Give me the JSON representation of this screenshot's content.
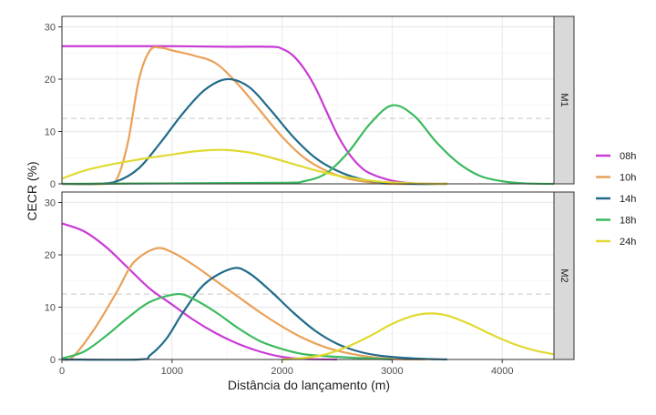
{
  "chart_data": {
    "type": "line",
    "xlabel": "Distância do lançamento (m)",
    "ylabel": "CECR (%)",
    "xlim": [
      0,
      4470
    ],
    "ylim": [
      0,
      32
    ],
    "xticks": [
      0,
      1000,
      2000,
      3000,
      4000
    ],
    "yticks": [
      0,
      10,
      20,
      30
    ],
    "grid": true,
    "threshold": 12.5,
    "legend": {
      "placement": "right",
      "entries": [
        "08h",
        "10h",
        "14h",
        "18h",
        "24h"
      ]
    },
    "colors": {
      "08h": "#c93ad4",
      "10h": "#e9a158",
      "14h": "#226b8a",
      "18h": "#3cba5f",
      "24h": "#e1d930"
    },
    "panels": [
      {
        "label": "M1",
        "series": [
          {
            "name": "08h",
            "x": [
              0,
              500,
              1000,
              1500,
              1900,
              2000,
              2100,
              2200,
              2300,
              2400,
              2500,
              2600,
              2700,
              2800,
              3000,
              3200,
              3500
            ],
            "y": [
              26.3,
              26.3,
              26.3,
              26.2,
              26.2,
              25.8,
              24.5,
              22,
              18.5,
              14,
              9.5,
              6,
              3.5,
              2,
              0.6,
              0.1,
              0
            ]
          },
          {
            "name": "10h",
            "x": [
              0,
              400,
              500,
              600,
              700,
              800,
              900,
              1000,
              1200,
              1400,
              1600,
              1800,
              2000,
              2200,
              2400,
              2600,
              2800,
              3000,
              3500
            ],
            "y": [
              0,
              0,
              1,
              8,
              20,
              25.5,
              26,
              25.5,
              24.5,
              23,
              19,
              14,
              9,
              5,
              2.5,
              1,
              0.3,
              0,
              0
            ]
          },
          {
            "name": "14h",
            "x": [
              0,
              300,
              500,
              700,
              900,
              1100,
              1300,
              1500,
              1700,
              1900,
              2100,
              2300,
              2500,
              2700,
              2900,
              3200,
              3500
            ],
            "y": [
              0,
              0,
              0.5,
              3,
              8,
              13.5,
              18,
              20,
              18.5,
              14,
              9,
              5,
              2.5,
              1,
              0.3,
              0,
              0
            ]
          },
          {
            "name": "18h",
            "x": [
              0,
              1000,
              2000,
              2200,
              2400,
              2600,
              2800,
              3000,
              3200,
              3400,
              3600,
              3800,
              4000,
              4200,
              4470
            ],
            "y": [
              0,
              0.1,
              0.2,
              0.5,
              2,
              6,
              11.5,
              15,
              13,
              8,
              4,
              1.5,
              0.5,
              0.1,
              0
            ]
          },
          {
            "name": "24h",
            "x": [
              0,
              200,
              400,
              600,
              800,
              1000,
              1200,
              1450,
              1700,
              1900,
              2100,
              2300,
              2500,
              2700,
              2900,
              3200,
              3500
            ],
            "y": [
              1,
              2.5,
              3.5,
              4.3,
              5,
              5.6,
              6.2,
              6.5,
              6,
              5,
              3.8,
              2.6,
              1.6,
              0.9,
              0.4,
              0.1,
              0
            ]
          }
        ]
      },
      {
        "label": "M2",
        "series": [
          {
            "name": "08h",
            "x": [
              0,
              200,
              400,
              600,
              800,
              1000,
              1200,
              1400,
              1600,
              1800,
              2000,
              2200,
              2500
            ],
            "y": [
              26,
              24.5,
              21.5,
              17.5,
              13.5,
              10.5,
              7.5,
              5,
              3,
              1.5,
              0.5,
              0.1,
              0
            ]
          },
          {
            "name": "10h",
            "x": [
              0,
              100,
              300,
              500,
              650,
              850,
              1000,
              1200,
              1400,
              1600,
              1800,
              2000,
              2200,
              2400,
              2600,
              2800,
              3000,
              3300
            ],
            "y": [
              0,
              0.5,
              6,
              13,
              18.5,
              21.2,
              20.5,
              18,
              15,
              12,
              9,
              6.3,
              4,
              2.3,
              1.2,
              0.5,
              0.1,
              0
            ]
          },
          {
            "name": "14h",
            "x": [
              0,
              700,
              800,
              950,
              1100,
              1300,
              1550,
              1700,
              1900,
              2100,
              2300,
              2500,
              2700,
              2900,
              3200,
              3500
            ],
            "y": [
              0,
              0,
              0.8,
              4,
              9,
              14.5,
              17.4,
              16.5,
              13,
              9,
              5.5,
              3,
              1.5,
              0.7,
              0.2,
              0
            ]
          },
          {
            "name": "18h",
            "x": [
              0,
              200,
              400,
              600,
              800,
              1050,
              1200,
              1400,
              1600,
              1800,
              2000,
              2200,
              2500,
              2800,
              3000
            ],
            "y": [
              0.2,
              1.5,
              4.5,
              8,
              11,
              12.5,
              11.5,
              9,
              6,
              3.5,
              2,
              1,
              0.5,
              0.2,
              0
            ]
          },
          {
            "name": "24h",
            "x": [
              2000,
              2200,
              2400,
              2600,
              2800,
              3000,
              3200,
              3350,
              3500,
              3700,
              3900,
              4100,
              4300,
              4470
            ],
            "y": [
              0,
              0.3,
              1,
              2.5,
              4.5,
              6.8,
              8.4,
              8.8,
              8.4,
              6.8,
              4.8,
              3,
              1.7,
              1
            ]
          }
        ]
      }
    ]
  }
}
